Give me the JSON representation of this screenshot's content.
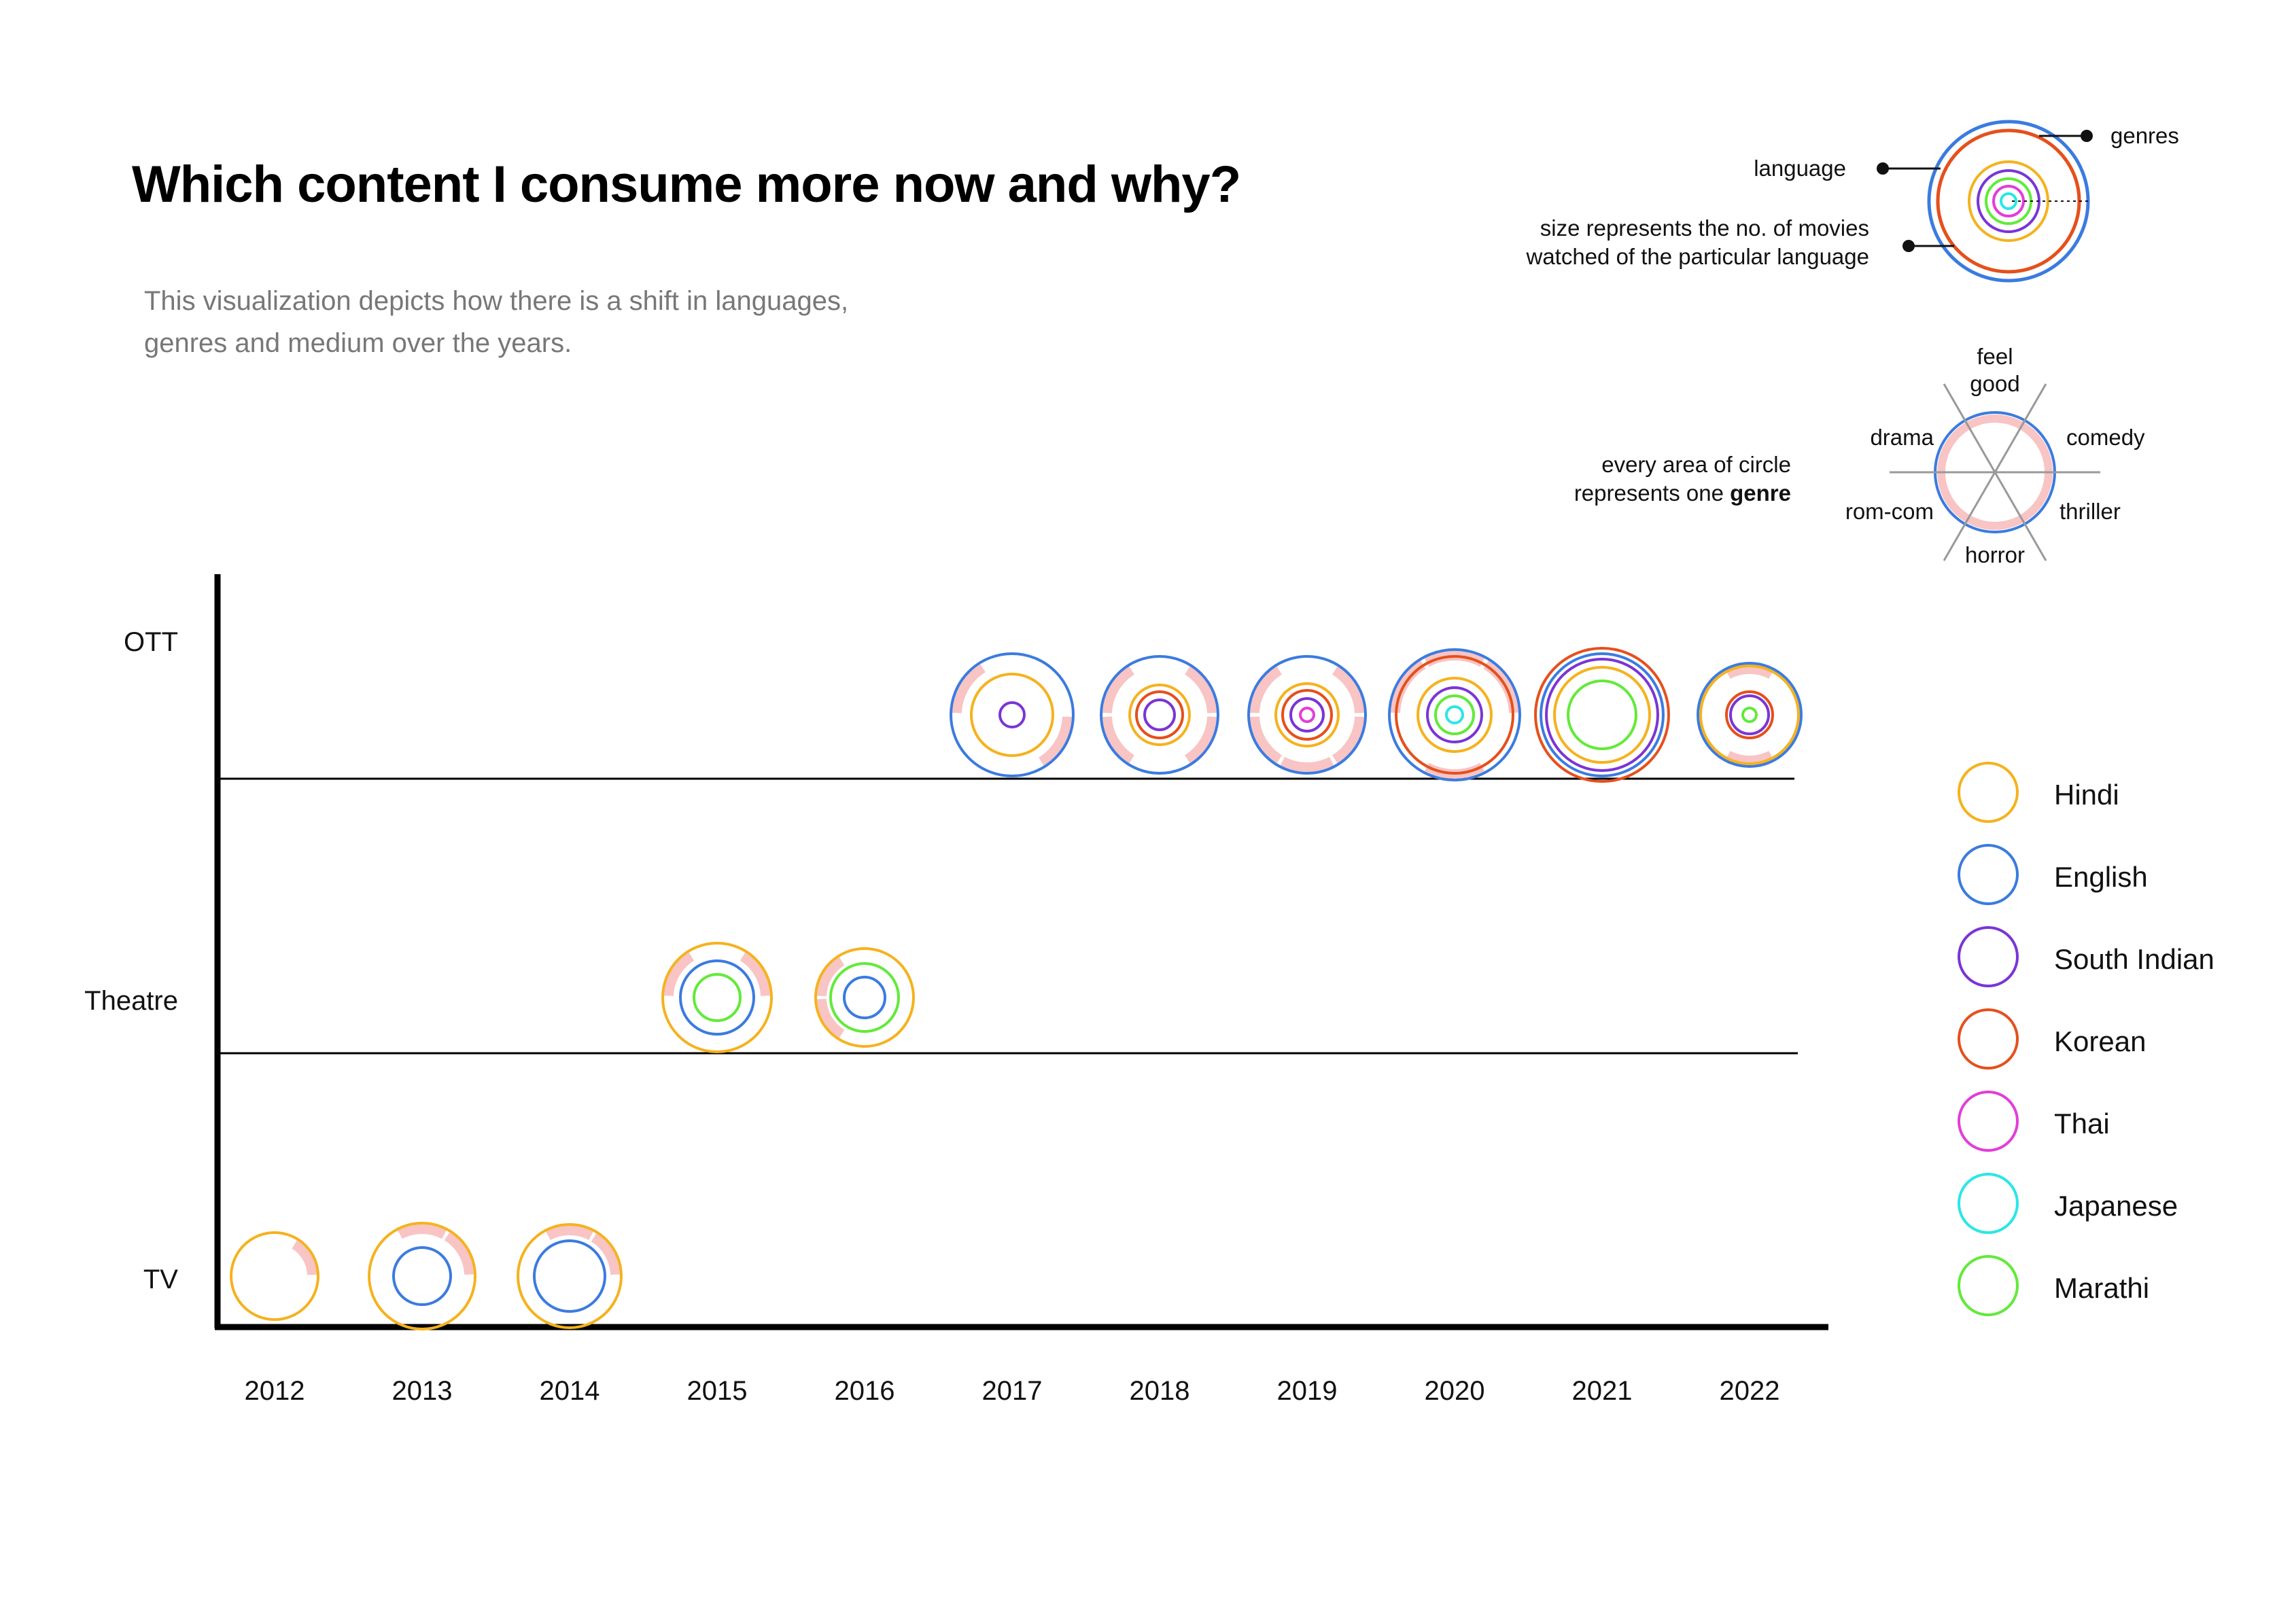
{
  "title": "Which content I consume more now and why?",
  "subtitle": "This visualization depicts how there is a shift in languages, genres and medium over the years.",
  "colors": {
    "Hindi": "#F5B21E",
    "English": "#3B7BE0",
    "South Indian": "#7A35D6",
    "Korean": "#E5501C",
    "Thai": "#E23ED8",
    "Japanese": "#2BE6E6",
    "Marathi": "#62EA39",
    "genre_arc": "#F8C4C4"
  },
  "key": {
    "genres_label": "genres",
    "language_label": "language",
    "size_line1": "size represents the no. of movies",
    "size_line2": "watched of the particular language",
    "genre_wheel": [
      "feel",
      "good",
      "comedy",
      "thriller",
      "horror",
      "rom-com",
      "drama"
    ],
    "genre_note_line1": "every area of circle",
    "genre_note_line2_prefix": "represents one ",
    "genre_note_line2_bold": "genre"
  },
  "chart_data": {
    "type": "scatter",
    "title": "Which content I consume more now and why?",
    "x": [
      "2012",
      "2013",
      "2014",
      "2015",
      "2016",
      "2017",
      "2018",
      "2019",
      "2020",
      "2021",
      "2022"
    ],
    "y_categories": [
      "OTT",
      "Theatre",
      "TV"
    ],
    "legend": [
      "Hindi",
      "English",
      "South Indian",
      "Korean",
      "Thai",
      "Japanese",
      "Marathi"
    ],
    "legend_position": "right",
    "points": [
      {
        "year": "2012",
        "medium": "TV",
        "rings": [
          {
            "lang": "Hindi",
            "size": 64
          }
        ],
        "genres": [
          "comedy"
        ]
      },
      {
        "year": "2013",
        "medium": "TV",
        "rings": [
          {
            "lang": "Hindi",
            "size": 78
          },
          {
            "lang": "English",
            "size": 42
          }
        ],
        "genres": [
          "comedy",
          "feel good"
        ]
      },
      {
        "year": "2014",
        "medium": "TV",
        "rings": [
          {
            "lang": "Hindi",
            "size": 76
          },
          {
            "lang": "English",
            "size": 52
          }
        ],
        "genres": [
          "feel good",
          "comedy"
        ]
      },
      {
        "year": "2015",
        "medium": "Theatre",
        "rings": [
          {
            "lang": "Hindi",
            "size": 80
          },
          {
            "lang": "English",
            "size": 54
          },
          {
            "lang": "Marathi",
            "size": 34
          }
        ],
        "genres": [
          "drama",
          "comedy"
        ]
      },
      {
        "year": "2016",
        "medium": "Theatre",
        "rings": [
          {
            "lang": "Hindi",
            "size": 72
          },
          {
            "lang": "Marathi",
            "size": 50
          },
          {
            "lang": "English",
            "size": 30
          }
        ],
        "genres": [
          "drama",
          "rom-com"
        ]
      },
      {
        "year": "2017",
        "medium": "OTT",
        "rings": [
          {
            "lang": "English",
            "size": 90
          },
          {
            "lang": "Hindi",
            "size": 60
          },
          {
            "lang": "South Indian",
            "size": 18
          }
        ],
        "genres": [
          "drama",
          "thriller"
        ]
      },
      {
        "year": "2018",
        "medium": "OTT",
        "rings": [
          {
            "lang": "English",
            "size": 86
          },
          {
            "lang": "Hindi",
            "size": 44
          },
          {
            "lang": "Korean",
            "size": 34
          },
          {
            "lang": "South Indian",
            "size": 22
          }
        ],
        "genres": [
          "drama",
          "comedy",
          "thriller",
          "rom-com"
        ]
      },
      {
        "year": "2019",
        "medium": "OTT",
        "rings": [
          {
            "lang": "English",
            "size": 86
          },
          {
            "lang": "Hindi",
            "size": 46
          },
          {
            "lang": "Korean",
            "size": 36
          },
          {
            "lang": "South Indian",
            "size": 24
          },
          {
            "lang": "Thai",
            "size": 10
          }
        ],
        "genres": [
          "drama",
          "comedy",
          "thriller",
          "horror",
          "rom-com"
        ]
      },
      {
        "year": "2020",
        "medium": "OTT",
        "rings": [
          {
            "lang": "English",
            "size": 96
          },
          {
            "lang": "Korean",
            "size": 86
          },
          {
            "lang": "Hindi",
            "size": 54
          },
          {
            "lang": "South Indian",
            "size": 40
          },
          {
            "lang": "Marathi",
            "size": 28
          },
          {
            "lang": "Japanese",
            "size": 12
          }
        ],
        "genres": [
          "feel good",
          "drama",
          "comedy",
          "horror"
        ]
      },
      {
        "year": "2021",
        "medium": "OTT",
        "rings": [
          {
            "lang": "Korean",
            "size": 98
          },
          {
            "lang": "English",
            "size": 90
          },
          {
            "lang": "South Indian",
            "size": 82
          },
          {
            "lang": "Hindi",
            "size": 70
          },
          {
            "lang": "Marathi",
            "size": 50
          }
        ],
        "genres": []
      },
      {
        "year": "2022",
        "medium": "OTT",
        "rings": [
          {
            "lang": "English",
            "size": 76
          },
          {
            "lang": "Hindi",
            "size": 72
          },
          {
            "lang": "Korean",
            "size": 34
          },
          {
            "lang": "South Indian",
            "size": 28
          },
          {
            "lang": "Marathi",
            "size": 10
          }
        ],
        "genres": [
          "feel good",
          "horror"
        ]
      }
    ]
  }
}
